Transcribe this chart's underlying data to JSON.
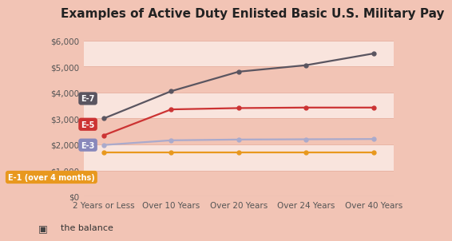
{
  "title": "Examples of Active Duty Enlisted Basic U.S. Military Pay",
  "background_color": "#f2c4b5",
  "plot_bg_color": "#f2c4b5",
  "stripe_color": "#ffffff",
  "x_labels": [
    "2 Years or Less",
    "Over 10 Years",
    "Over 20 Years",
    "Over 24 Years",
    "Over 40 Years"
  ],
  "series": [
    {
      "label": "E-7",
      "values": [
        3000,
        4050,
        4800,
        5050,
        5500
      ],
      "color": "#5a5560",
      "label_bg": "#5a5560"
    },
    {
      "label": "E-5",
      "values": [
        2350,
        3350,
        3400,
        3420,
        3420
      ],
      "color": "#cc3333",
      "label_bg": "#cc3333"
    },
    {
      "label": "E-3",
      "values": [
        1980,
        2160,
        2190,
        2200,
        2210
      ],
      "color": "#aaaacc",
      "label_bg": "#8888bb"
    },
    {
      "label": "E-1 (over 4 months)",
      "values": [
        1680,
        1680,
        1680,
        1680,
        1680
      ],
      "color": "#e8981e",
      "label_bg": "#e8981e"
    }
  ],
  "ylim": [
    0,
    6500
  ],
  "yticks": [
    0,
    1000,
    2000,
    3000,
    4000,
    5000,
    6000
  ],
  "ytick_labels": [
    "$0",
    "$1,000",
    "$2,000",
    "$3,000",
    "$4,000",
    "$5,000",
    "$6,000"
  ],
  "grid_color": "#e8b5a5",
  "watermark": "the balance",
  "title_fontsize": 11,
  "tick_fontsize": 7.5,
  "label_fontsize": 7
}
